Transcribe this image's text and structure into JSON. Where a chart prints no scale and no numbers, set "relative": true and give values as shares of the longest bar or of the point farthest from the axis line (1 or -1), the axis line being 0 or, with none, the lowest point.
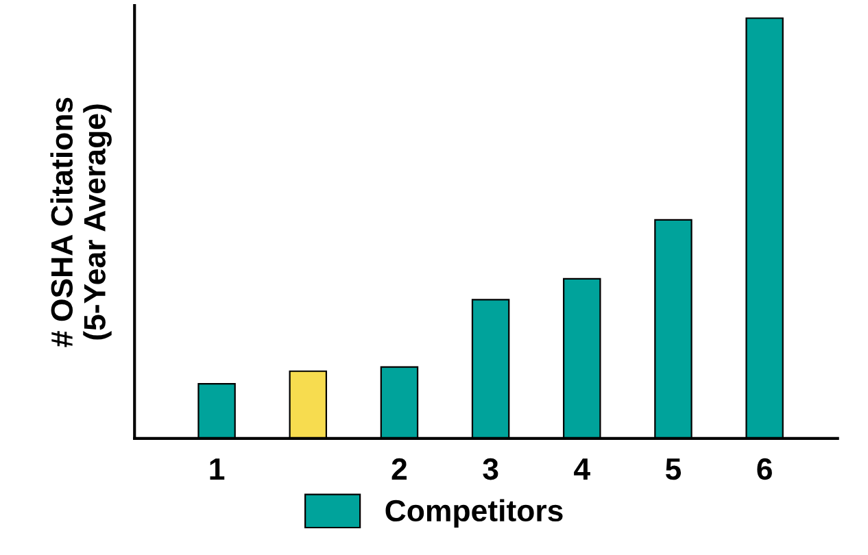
{
  "chart_data": {
    "type": "bar",
    "ylabel": "# OSHA Citations\n(5-Year Average)",
    "relative": true,
    "categories": [
      "1",
      null,
      "2",
      "3",
      "4",
      "5",
      "6"
    ],
    "series": [
      {
        "color": "#f7dc4f",
        "values": [
          null,
          0.16,
          null,
          null,
          null,
          null,
          null
        ]
      },
      {
        "name": "Competitors",
        "color": "#00a39b",
        "values": [
          0.13,
          null,
          0.17,
          0.33,
          0.38,
          0.52,
          1
        ]
      }
    ],
    "legend": "bottom left",
    "grid": false
  }
}
